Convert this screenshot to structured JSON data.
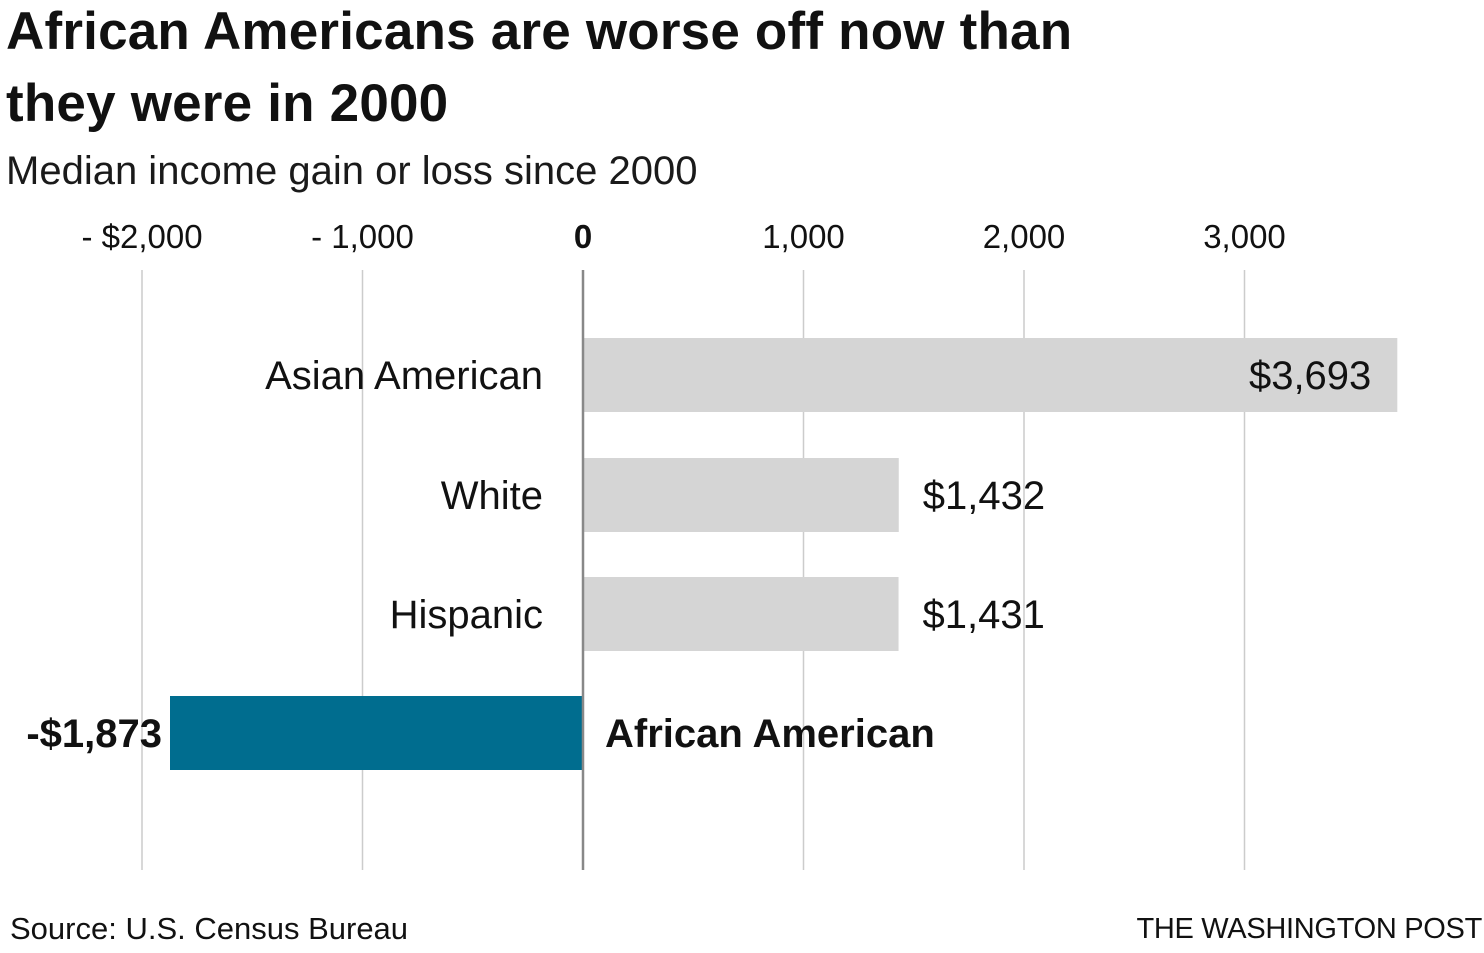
{
  "header": {
    "title": "African Americans are worse off now than they were in 2000",
    "subtitle": "Median income gain or loss since 2000"
  },
  "footer": {
    "source": "Source: U.S. Census Bureau",
    "credit": "THE WASHINGTON POST"
  },
  "colors": {
    "neutral_bar": "#d5d5d5",
    "highlight_bar": "#006d8f",
    "gridline": "#cccccc",
    "zero_line": "#888888",
    "text": "#111111"
  },
  "chart_data": {
    "type": "bar",
    "orientation": "horizontal",
    "title": "African Americans are worse off now than they were in 2000",
    "subtitle": "Median income gain or loss since 2000",
    "xlim": [
      -2000,
      3000
    ],
    "xticks": [
      {
        "value": -2000,
        "label": "- $2,000",
        "bold": false
      },
      {
        "value": -1000,
        "label": "- 1,000",
        "bold": false
      },
      {
        "value": 0,
        "label": "0",
        "bold": true
      },
      {
        "value": 1000,
        "label": "1,000",
        "bold": false
      },
      {
        "value": 2000,
        "label": "2,000",
        "bold": false
      },
      {
        "value": 3000,
        "label": "3,000",
        "bold": false
      }
    ],
    "grid": true,
    "categories": [
      "Asian American",
      "White",
      "Hispanic",
      "African American"
    ],
    "values": [
      3693,
      1432,
      1431,
      -1873
    ],
    "value_labels": [
      "$3,693",
      "$1,432",
      "$1,431",
      "-$1,873"
    ],
    "highlight": [
      false,
      false,
      false,
      true
    ],
    "source": "Source: U.S. Census Bureau"
  }
}
